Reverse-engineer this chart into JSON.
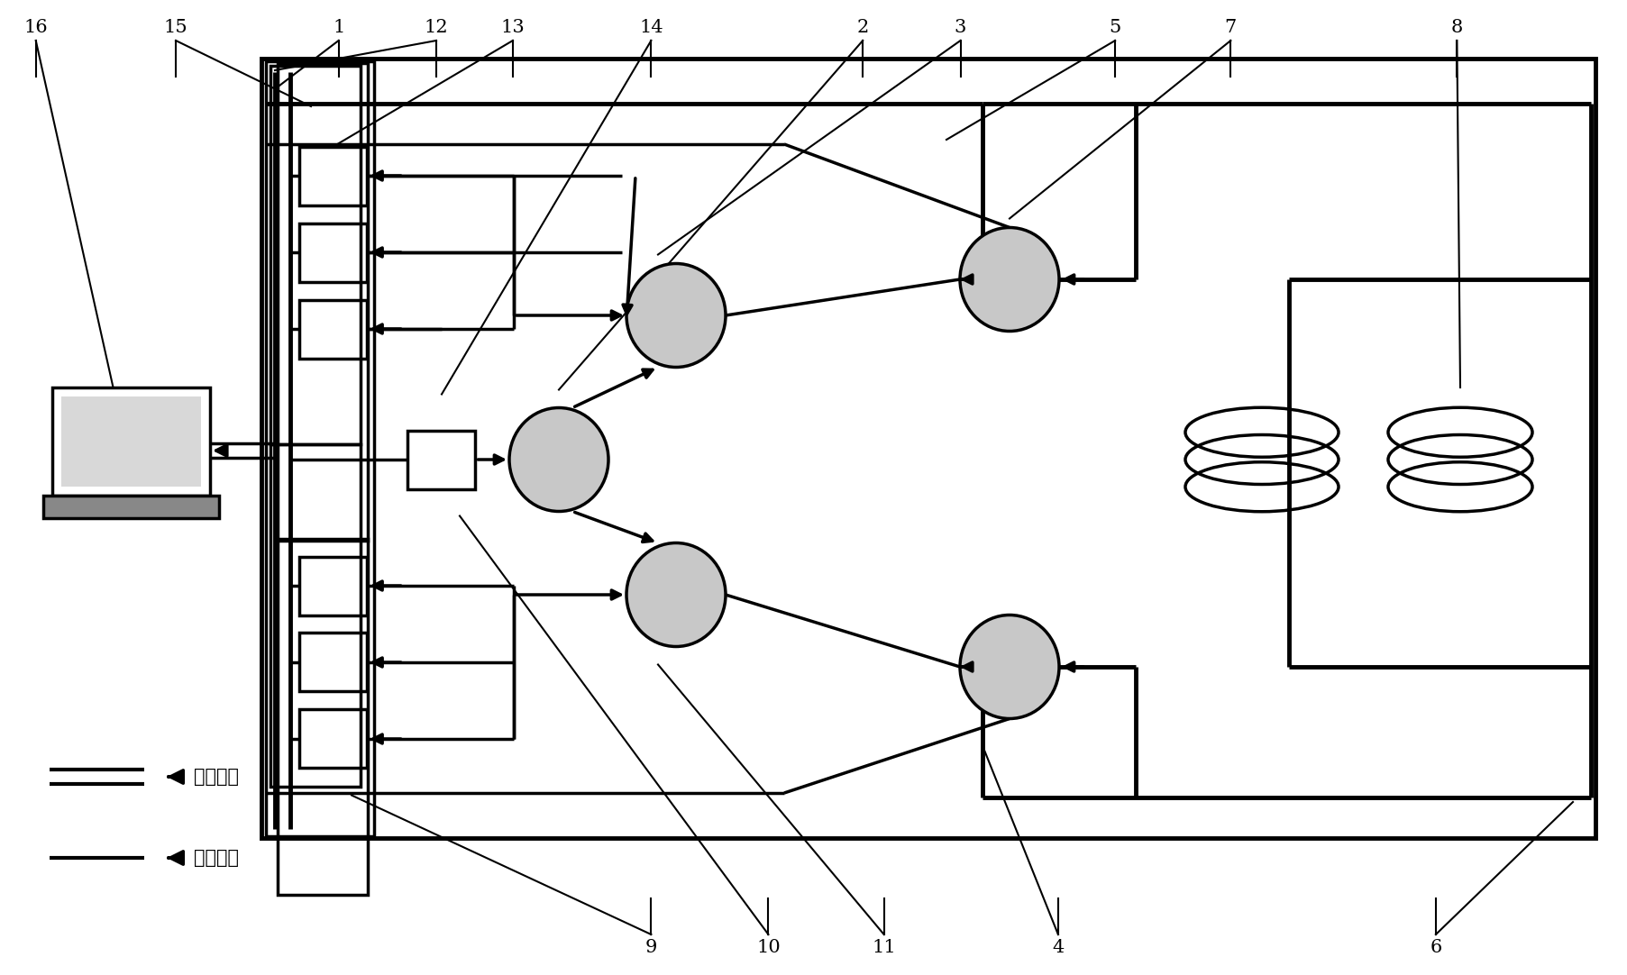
{
  "fig_width": 18.06,
  "fig_height": 10.82,
  "bg_color": "#ffffff",
  "legend_electric_text": "电线连接",
  "legend_fiber_text": "光纤连接",
  "font_size": 13,
  "label_positions_top": {
    "16": 0.022,
    "15": 0.108,
    "1": 0.208,
    "12": 0.268,
    "13": 0.315,
    "14": 0.4,
    "2": 0.53,
    "3": 0.59,
    "5": 0.685,
    "7": 0.756,
    "8": 0.895
  },
  "label_positions_bot": {
    "9": 0.4,
    "10": 0.472,
    "11": 0.543,
    "4": 0.65,
    "6": 0.882
  }
}
